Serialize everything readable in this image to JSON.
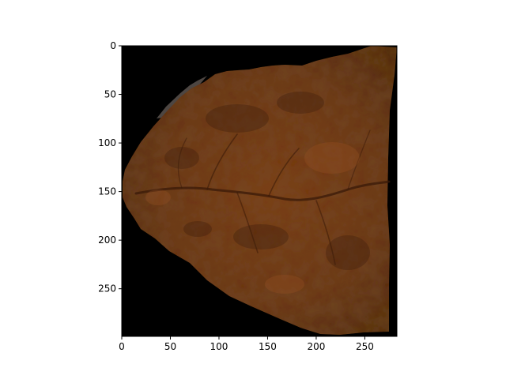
{
  "figure": {
    "image_description_name": "leaf-fragment-image",
    "colors": {
      "background": "#000000",
      "leaf_base": "#6a3416",
      "leaf_dark": "#3b1d0b",
      "leaf_light": "#8a4a22",
      "axis": "#000000",
      "figure_bg": "#ffffff"
    },
    "x_axis": {
      "range": [
        0,
        283
      ],
      "ticks": [
        0,
        50,
        100,
        150,
        200,
        250
      ],
      "tick_labels": [
        "0",
        "50",
        "100",
        "150",
        "200",
        "250"
      ]
    },
    "y_axis": {
      "range": [
        0,
        299
      ],
      "inverted": true,
      "ticks": [
        0,
        50,
        100,
        150,
        200,
        250
      ],
      "tick_labels": [
        "0",
        "50",
        "100",
        "150",
        "200",
        "250"
      ]
    }
  }
}
